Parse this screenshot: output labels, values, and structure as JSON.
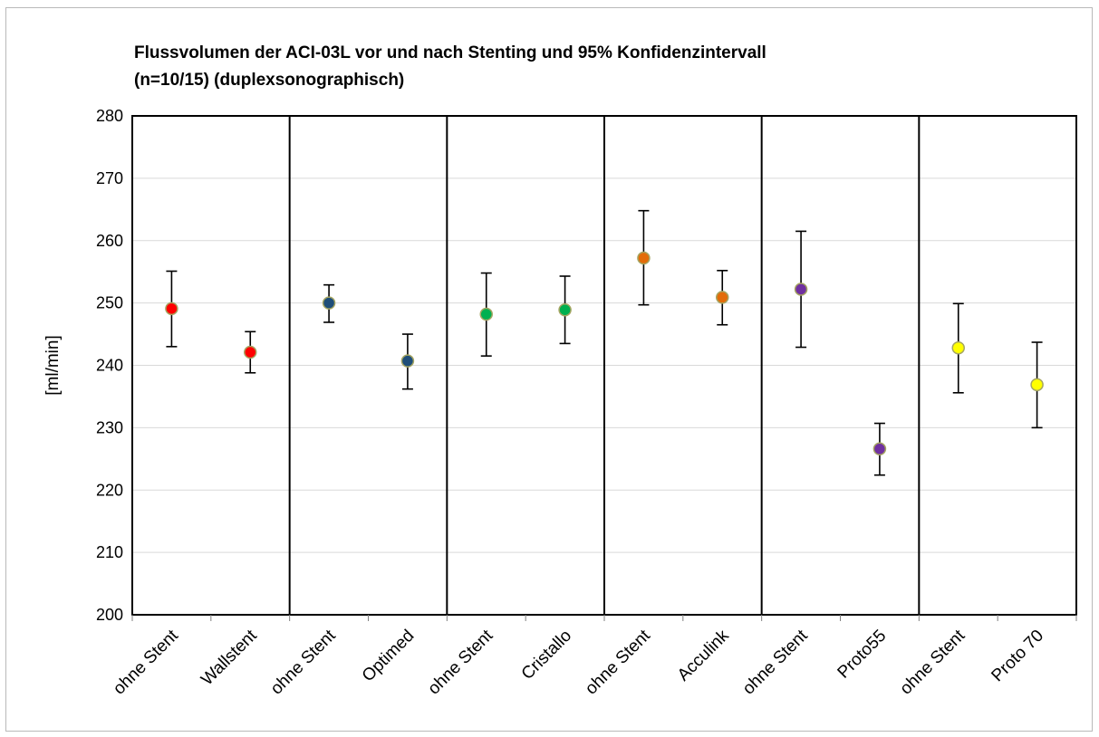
{
  "chart_data": {
    "type": "scatter",
    "title_lines": [
      "Flussvolumen der ACI-03L vor und nach Stenting und 95% Konfidenzintervall",
      "(n=10/15) (duplexsonographisch)"
    ],
    "ylabel": "[ml/min]",
    "ylim": [
      200,
      280
    ],
    "ytick_step": 10,
    "grid": true,
    "categories": [
      "ohne Stent",
      "Wallstent",
      "ohne Stent",
      "Optimed",
      "ohne Stent",
      "Cristallo",
      "ohne Stent",
      "Acculink",
      "ohne Stent",
      "Proto55",
      "ohne Stent",
      "Proto 70"
    ],
    "groups": [
      {
        "color": "#ff0000",
        "points": [
          {
            "mean": 249.1,
            "low": 243.0,
            "high": 255.1
          },
          {
            "mean": 242.1,
            "low": 238.8,
            "high": 245.4
          }
        ]
      },
      {
        "color": "#1f4e79",
        "points": [
          {
            "mean": 250.0,
            "low": 246.9,
            "high": 252.9
          },
          {
            "mean": 240.7,
            "low": 236.2,
            "high": 245.0
          }
        ]
      },
      {
        "color": "#00b050",
        "points": [
          {
            "mean": 248.2,
            "low": 241.5,
            "high": 254.8
          },
          {
            "mean": 248.9,
            "low": 243.5,
            "high": 254.3
          }
        ]
      },
      {
        "color": "#e36c09",
        "points": [
          {
            "mean": 257.2,
            "low": 249.7,
            "high": 264.8
          },
          {
            "mean": 250.9,
            "low": 246.5,
            "high": 255.2
          }
        ]
      },
      {
        "color": "#7030a0",
        "points": [
          {
            "mean": 252.2,
            "low": 242.9,
            "high": 261.5
          },
          {
            "mean": 226.6,
            "low": 222.4,
            "high": 230.7
          }
        ]
      },
      {
        "color": "#ffff00",
        "points": [
          {
            "mean": 242.8,
            "low": 235.6,
            "high": 249.9
          },
          {
            "mean": 236.9,
            "low": 230.0,
            "high": 243.7
          }
        ]
      }
    ],
    "marker_edge_color": "#a5a562"
  }
}
